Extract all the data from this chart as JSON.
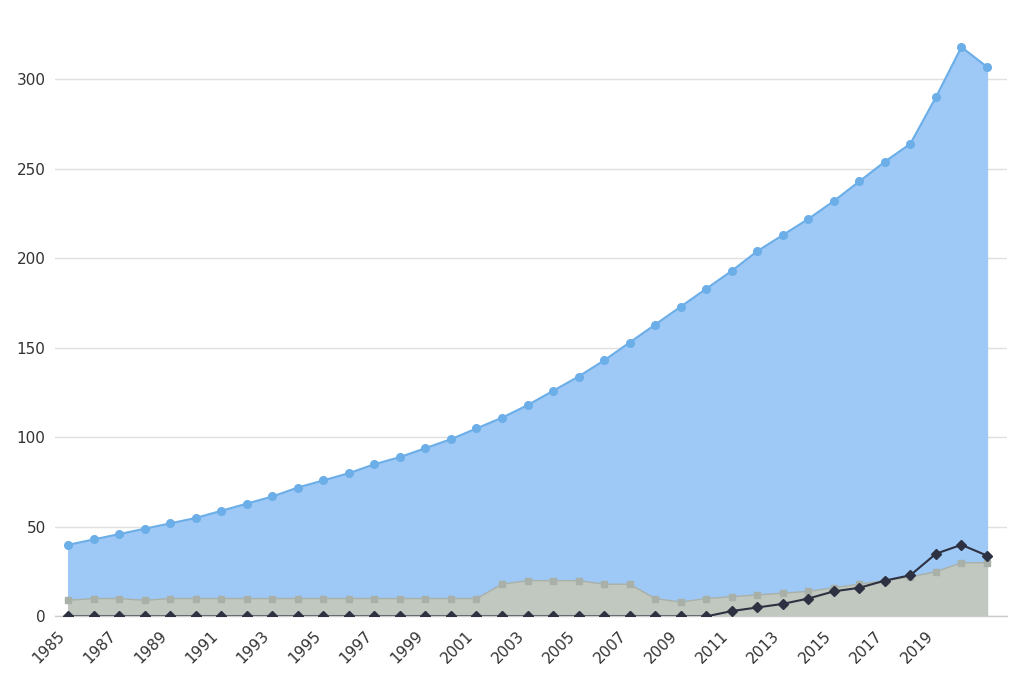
{
  "years": [
    1985,
    1986,
    1987,
    1988,
    1989,
    1990,
    1991,
    1992,
    1993,
    1994,
    1995,
    1996,
    1997,
    1998,
    1999,
    2000,
    2001,
    2002,
    2003,
    2004,
    2005,
    2006,
    2007,
    2008,
    2009,
    2010,
    2011,
    2012,
    2013,
    2014,
    2015,
    2016,
    2017,
    2018,
    2019,
    2020,
    2021
  ],
  "fossil": [
    40,
    43,
    46,
    49,
    52,
    55,
    59,
    63,
    67,
    72,
    76,
    80,
    85,
    89,
    94,
    99,
    105,
    111,
    118,
    126,
    134,
    143,
    153,
    163,
    173,
    183,
    193,
    204,
    213,
    222,
    232,
    243,
    254,
    264,
    290,
    318,
    307
  ],
  "nuclear": [
    0,
    0,
    0,
    0,
    0,
    0,
    0,
    0,
    0,
    0,
    0,
    0,
    0,
    0,
    0,
    0,
    0,
    0,
    0,
    0,
    0,
    0,
    0,
    0,
    0,
    0,
    3,
    5,
    7,
    10,
    14,
    16,
    20,
    23,
    35,
    40,
    34
  ],
  "renewables": [
    9,
    10,
    10,
    9,
    10,
    10,
    10,
    10,
    10,
    10,
    10,
    10,
    10,
    10,
    10,
    10,
    10,
    18,
    20,
    20,
    20,
    18,
    18,
    10,
    8,
    10,
    11,
    12,
    13,
    14,
    16,
    18,
    20,
    22,
    25,
    30,
    30
  ],
  "fossil_color": "#6baee8",
  "fossil_fill": "#9ec8f5",
  "nuclear_color": "#2d3142",
  "renewables_color": "#a8b0a8",
  "renewables_fill": "#c0c8c0",
  "background_color": "#ffffff",
  "grid_color": "#e0e0e0",
  "yticks": [
    0,
    50,
    100,
    150,
    200,
    250,
    300
  ],
  "xtick_years": [
    1985,
    1987,
    1989,
    1991,
    1993,
    1995,
    1997,
    1999,
    2001,
    2003,
    2005,
    2007,
    2009,
    2011,
    2013,
    2015,
    2017,
    2019
  ],
  "ylim": [
    0,
    335
  ],
  "xlim": [
    1984.5,
    2021.8
  ]
}
